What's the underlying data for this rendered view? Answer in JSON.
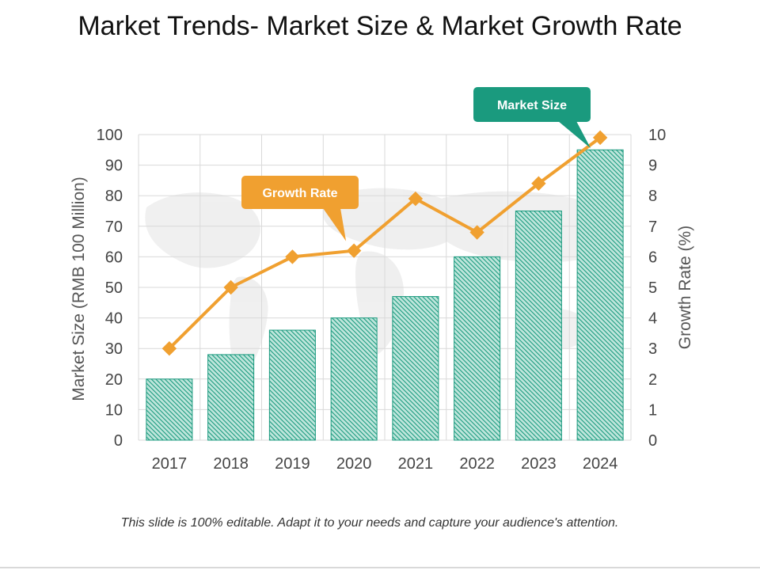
{
  "slide": {
    "title": "Market Trends- Market Size & Market Growth Rate",
    "footer": "This slide is 100% editable. Adapt it to your needs and capture your audience's attention."
  },
  "chart_data": {
    "type": "bar+line",
    "categories": [
      "2017",
      "2018",
      "2019",
      "2020",
      "2021",
      "2022",
      "2023",
      "2024"
    ],
    "series": [
      {
        "name": "Market Size",
        "type": "bar",
        "axis": "left",
        "values": [
          20,
          28,
          36,
          40,
          47,
          60,
          75,
          95
        ],
        "color": "#1a9a7e"
      },
      {
        "name": "Growth Rate",
        "type": "line",
        "axis": "right",
        "values": [
          3.0,
          5.0,
          6.0,
          6.2,
          7.9,
          6.8,
          8.4,
          9.9
        ],
        "color": "#f0a030"
      }
    ],
    "y_left": {
      "label": "Market Size (RMB 100 Million)",
      "range": [
        0,
        100
      ],
      "ticks": [
        "0",
        "10",
        "20",
        "30",
        "40",
        "50",
        "60",
        "70",
        "80",
        "90",
        "100"
      ]
    },
    "y_right": {
      "label": "Growth Rate (%)",
      "range": [
        0,
        10
      ],
      "ticks": [
        "0",
        "1",
        "2",
        "3",
        "4",
        "5",
        "6",
        "7",
        "8",
        "9",
        "10"
      ]
    },
    "grid": true,
    "callouts": [
      {
        "text": "Growth Rate",
        "series": "Growth Rate",
        "color": "#f0a030"
      },
      {
        "text": "Market Size",
        "series": "Market Size",
        "color": "#1a9a7e"
      }
    ]
  }
}
